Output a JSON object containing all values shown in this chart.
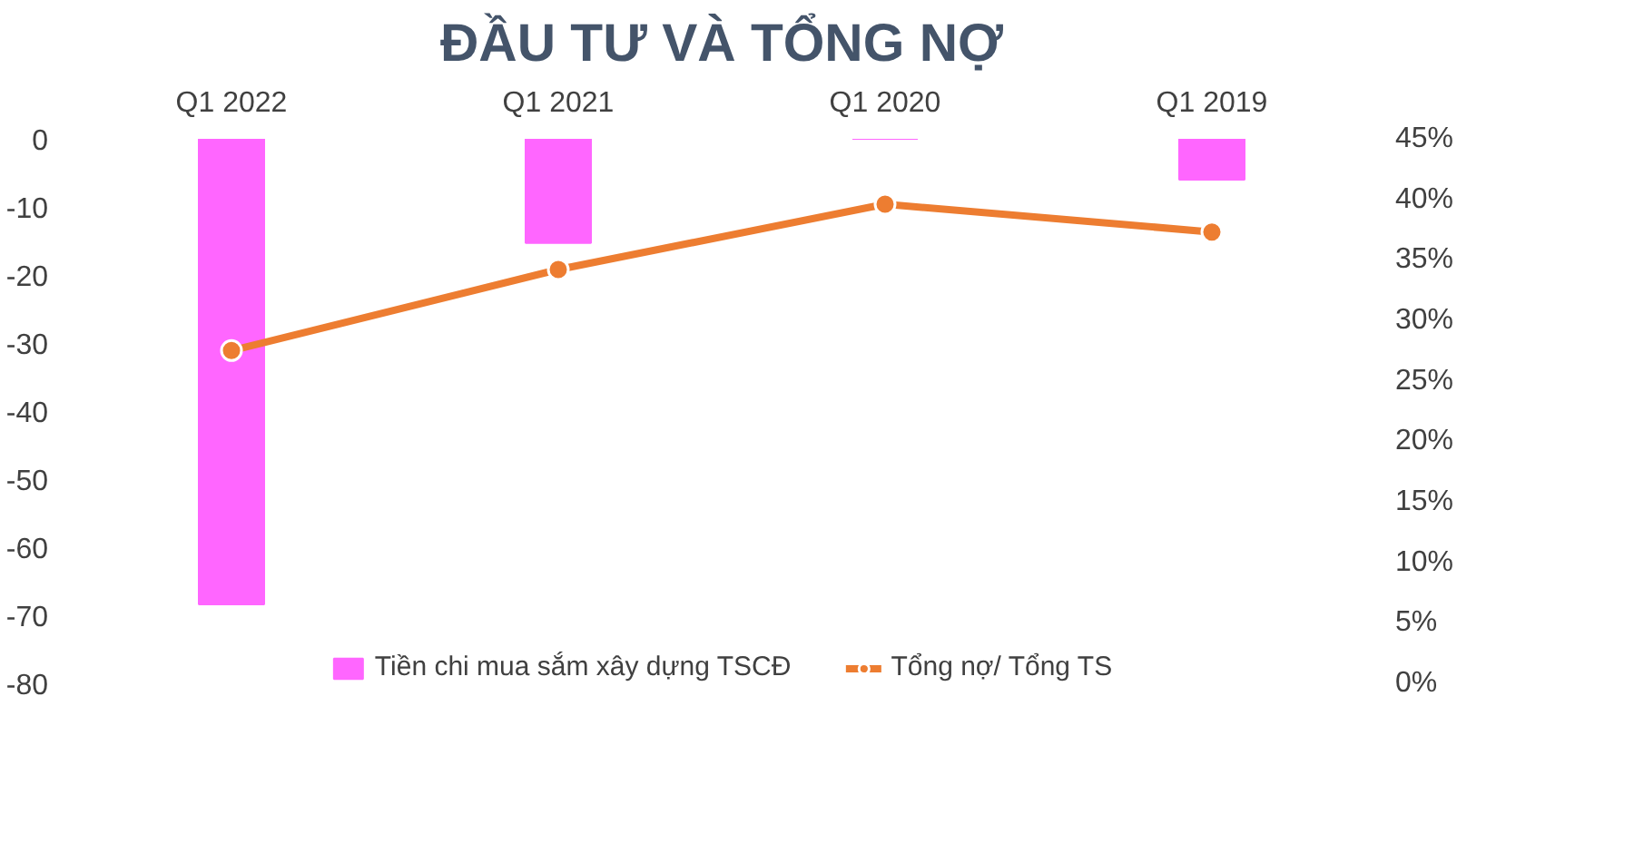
{
  "chart_data": {
    "type": "bar",
    "title": "ĐẦU TƯ VÀ TỔNG NỢ",
    "categories": [
      "Q1 2022",
      "Q1 2021",
      "Q1 2020",
      "Q1 2019"
    ],
    "series": [
      {
        "name": "Tiền chi mua sắm xây dựng TSCĐ",
        "color": "#ff66ff",
        "values": [
          -68.4,
          -15.3,
          0,
          -6
        ]
      },
      {
        "name": "Tổng nợ/ Tổng TS",
        "type": "line",
        "axis": "y2",
        "color": "#ed7d31",
        "marker": "circle",
        "values": [
          27.5,
          34.2,
          39.6,
          37.3
        ]
      }
    ],
    "ylim": [
      -80,
      0
    ],
    "yticks": [
      0,
      -10,
      -20,
      -30,
      -40,
      -50,
      -60,
      -70,
      -80
    ],
    "y2lim": [
      0,
      45
    ],
    "y2ticks": [
      {
        "value": 0,
        "label": "0%"
      },
      {
        "value": 5,
        "label": "5%"
      },
      {
        "value": 10,
        "label": "10%"
      },
      {
        "value": 15,
        "label": "15%"
      },
      {
        "value": 20,
        "label": "20%"
      },
      {
        "value": 25,
        "label": "25%"
      },
      {
        "value": 30,
        "label": "30%"
      },
      {
        "value": 35,
        "label": "35%"
      },
      {
        "value": 40,
        "label": "40%"
      },
      {
        "value": 45,
        "label": "45%"
      }
    ],
    "grid": false,
    "legend": "bottom"
  }
}
